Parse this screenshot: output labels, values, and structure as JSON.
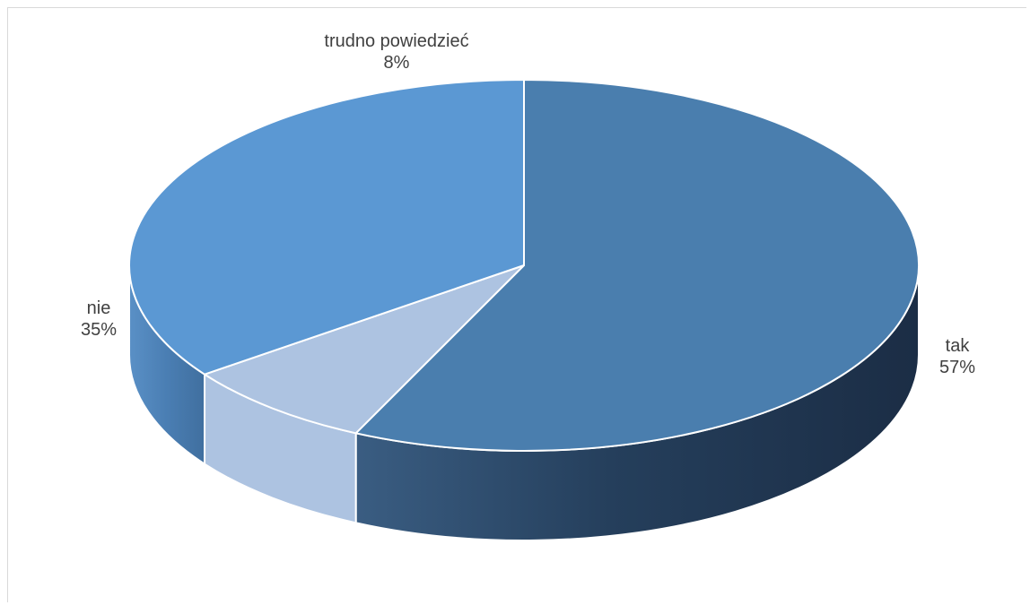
{
  "chart_data": {
    "type": "pie",
    "title": "",
    "style": "3d",
    "start": "top, clockwise",
    "slices": [
      {
        "label": "tak",
        "value": 57,
        "value_label": "57%",
        "color": "#4a7eae"
      },
      {
        "label": "trudno powiedzieć",
        "value": 8,
        "value_label": "8%",
        "color": "#adc3e1"
      },
      {
        "label": "nie",
        "value": 35,
        "value_label": "35%",
        "color": "#5b98d3"
      }
    ]
  }
}
